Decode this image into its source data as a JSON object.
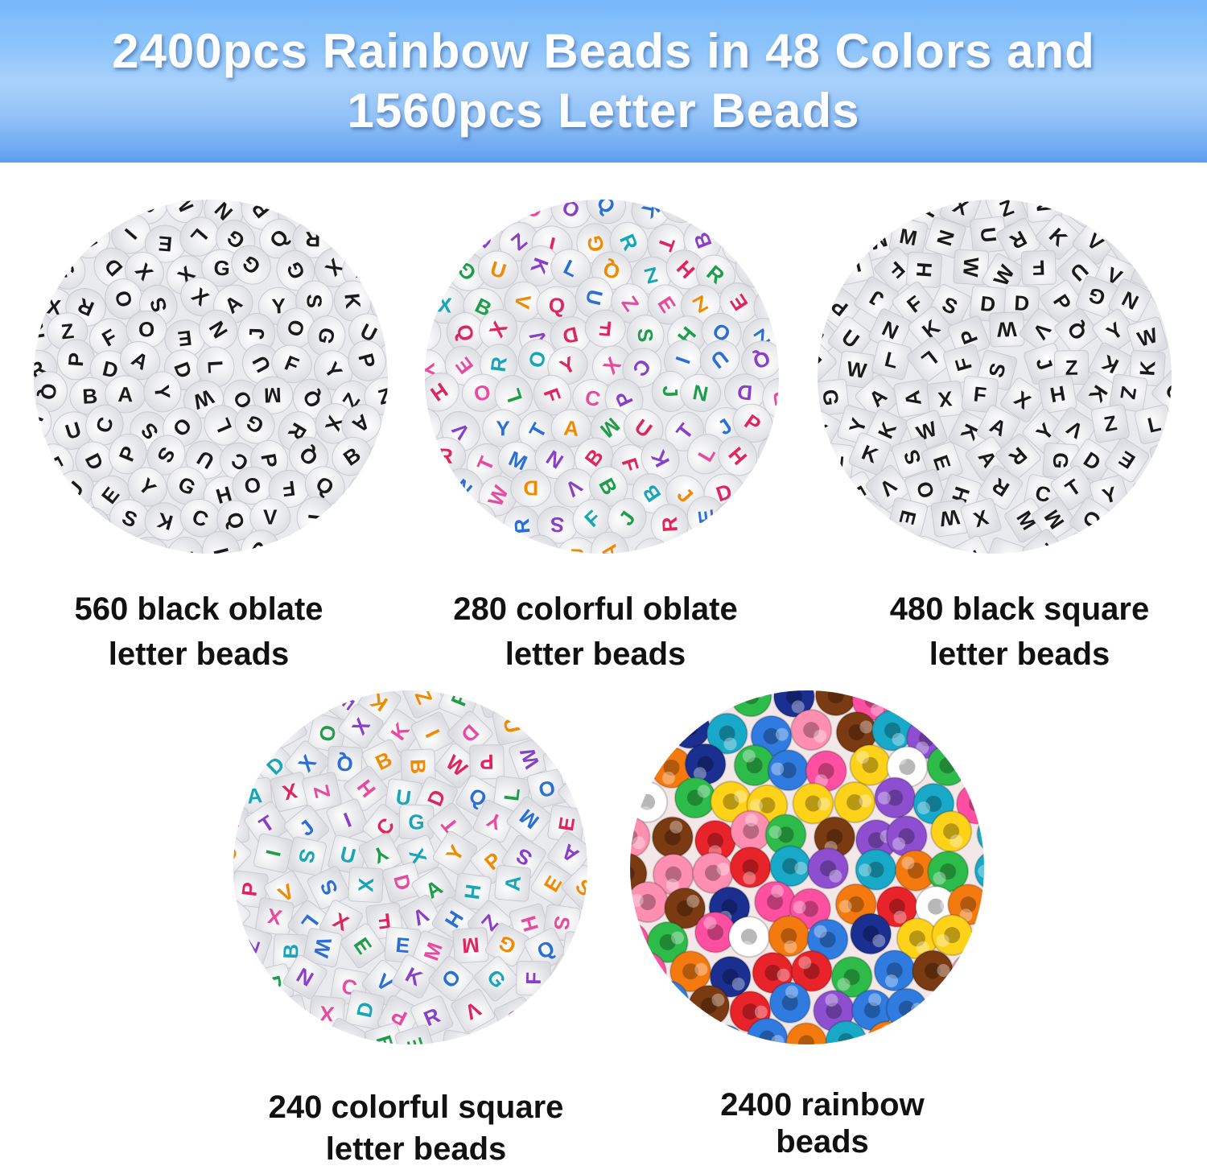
{
  "header": {
    "line1": "2400pcs Rainbow Beads in 48 Colors and",
    "line2": "1560pcs Letter Beads",
    "gradient": [
      "#78b9fb",
      "#a9d1fb",
      "#5f9ff0"
    ]
  },
  "products": [
    {
      "line1": "560 black oblate",
      "line2": "letter beads",
      "kind": "black-oblate"
    },
    {
      "line1": "280 colorful oblate",
      "line2": "letter beads",
      "kind": "color-oblate"
    },
    {
      "line1": "480 black square",
      "line2": "letter beads",
      "kind": "black-square"
    },
    {
      "line1": "240 colorful square",
      "line2": "letter beads",
      "kind": "color-square"
    },
    {
      "line1": "2400 rainbow",
      "line2": "beads",
      "kind": "pony"
    }
  ],
  "colors": {
    "letter_colors": [
      "#e0245e",
      "#1e9e4a",
      "#2b6fd6",
      "#f08a00",
      "#8a3fc9",
      "#16a6b8",
      "#e84aa0"
    ],
    "pony_colors": [
      "#e8232a",
      "#f47a10",
      "#ffd21a",
      "#2f7be0",
      "#1a2f8f",
      "#8d4fd0",
      "#ff4fa0",
      "#2dbb4a",
      "#18a8c8",
      "#ffffff",
      "#7a3a12",
      "#ff8fb0"
    ]
  }
}
